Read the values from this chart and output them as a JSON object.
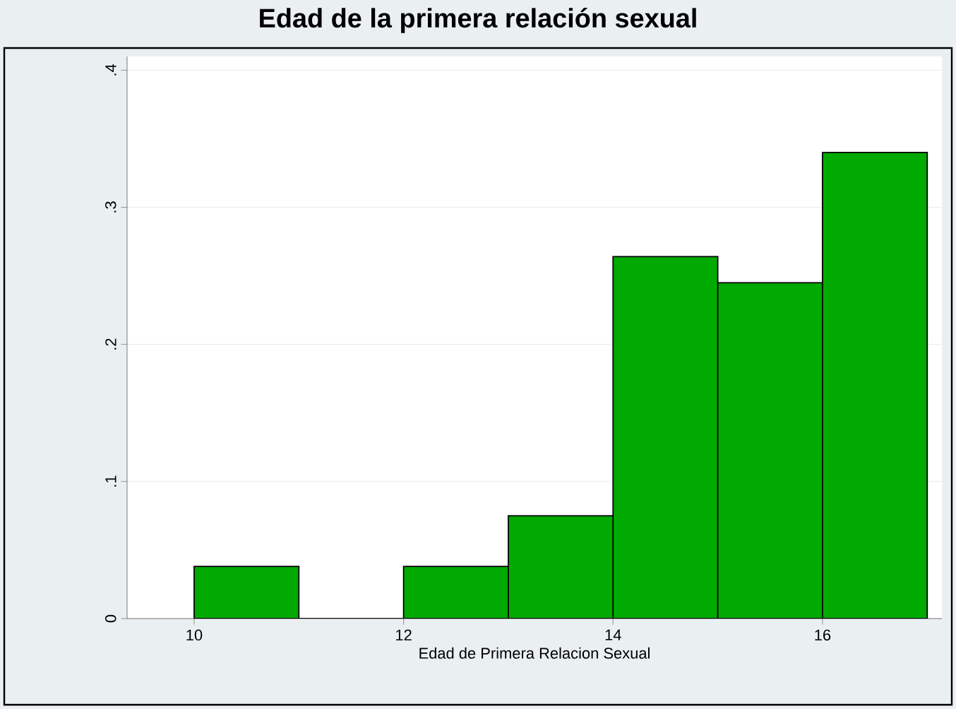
{
  "chart_data": {
    "type": "histogram",
    "title": "Edad de la primera relación sexual",
    "xlabel": "Edad de Primera Relacion Sexual",
    "bins": [
      10,
      11,
      12,
      13,
      14,
      15,
      16,
      17
    ],
    "values": [
      0.038,
      0,
      0.038,
      0.075,
      0.264,
      0.245,
      0.34
    ],
    "color": "#00aa00",
    "xlim": [
      9.36,
      17.14
    ],
    "ylim": [
      0,
      0.41
    ],
    "xticks": [
      10,
      12,
      14,
      16
    ],
    "yticks": [
      {
        "value": 0,
        "label": "0"
      },
      {
        "value": 0.1,
        "label": ".1"
      },
      {
        "value": 0.2,
        "label": ".2"
      },
      {
        "value": 0.3,
        "label": ".3"
      },
      {
        "value": 0.4,
        "label": ".4"
      }
    ],
    "grid": "y"
  }
}
